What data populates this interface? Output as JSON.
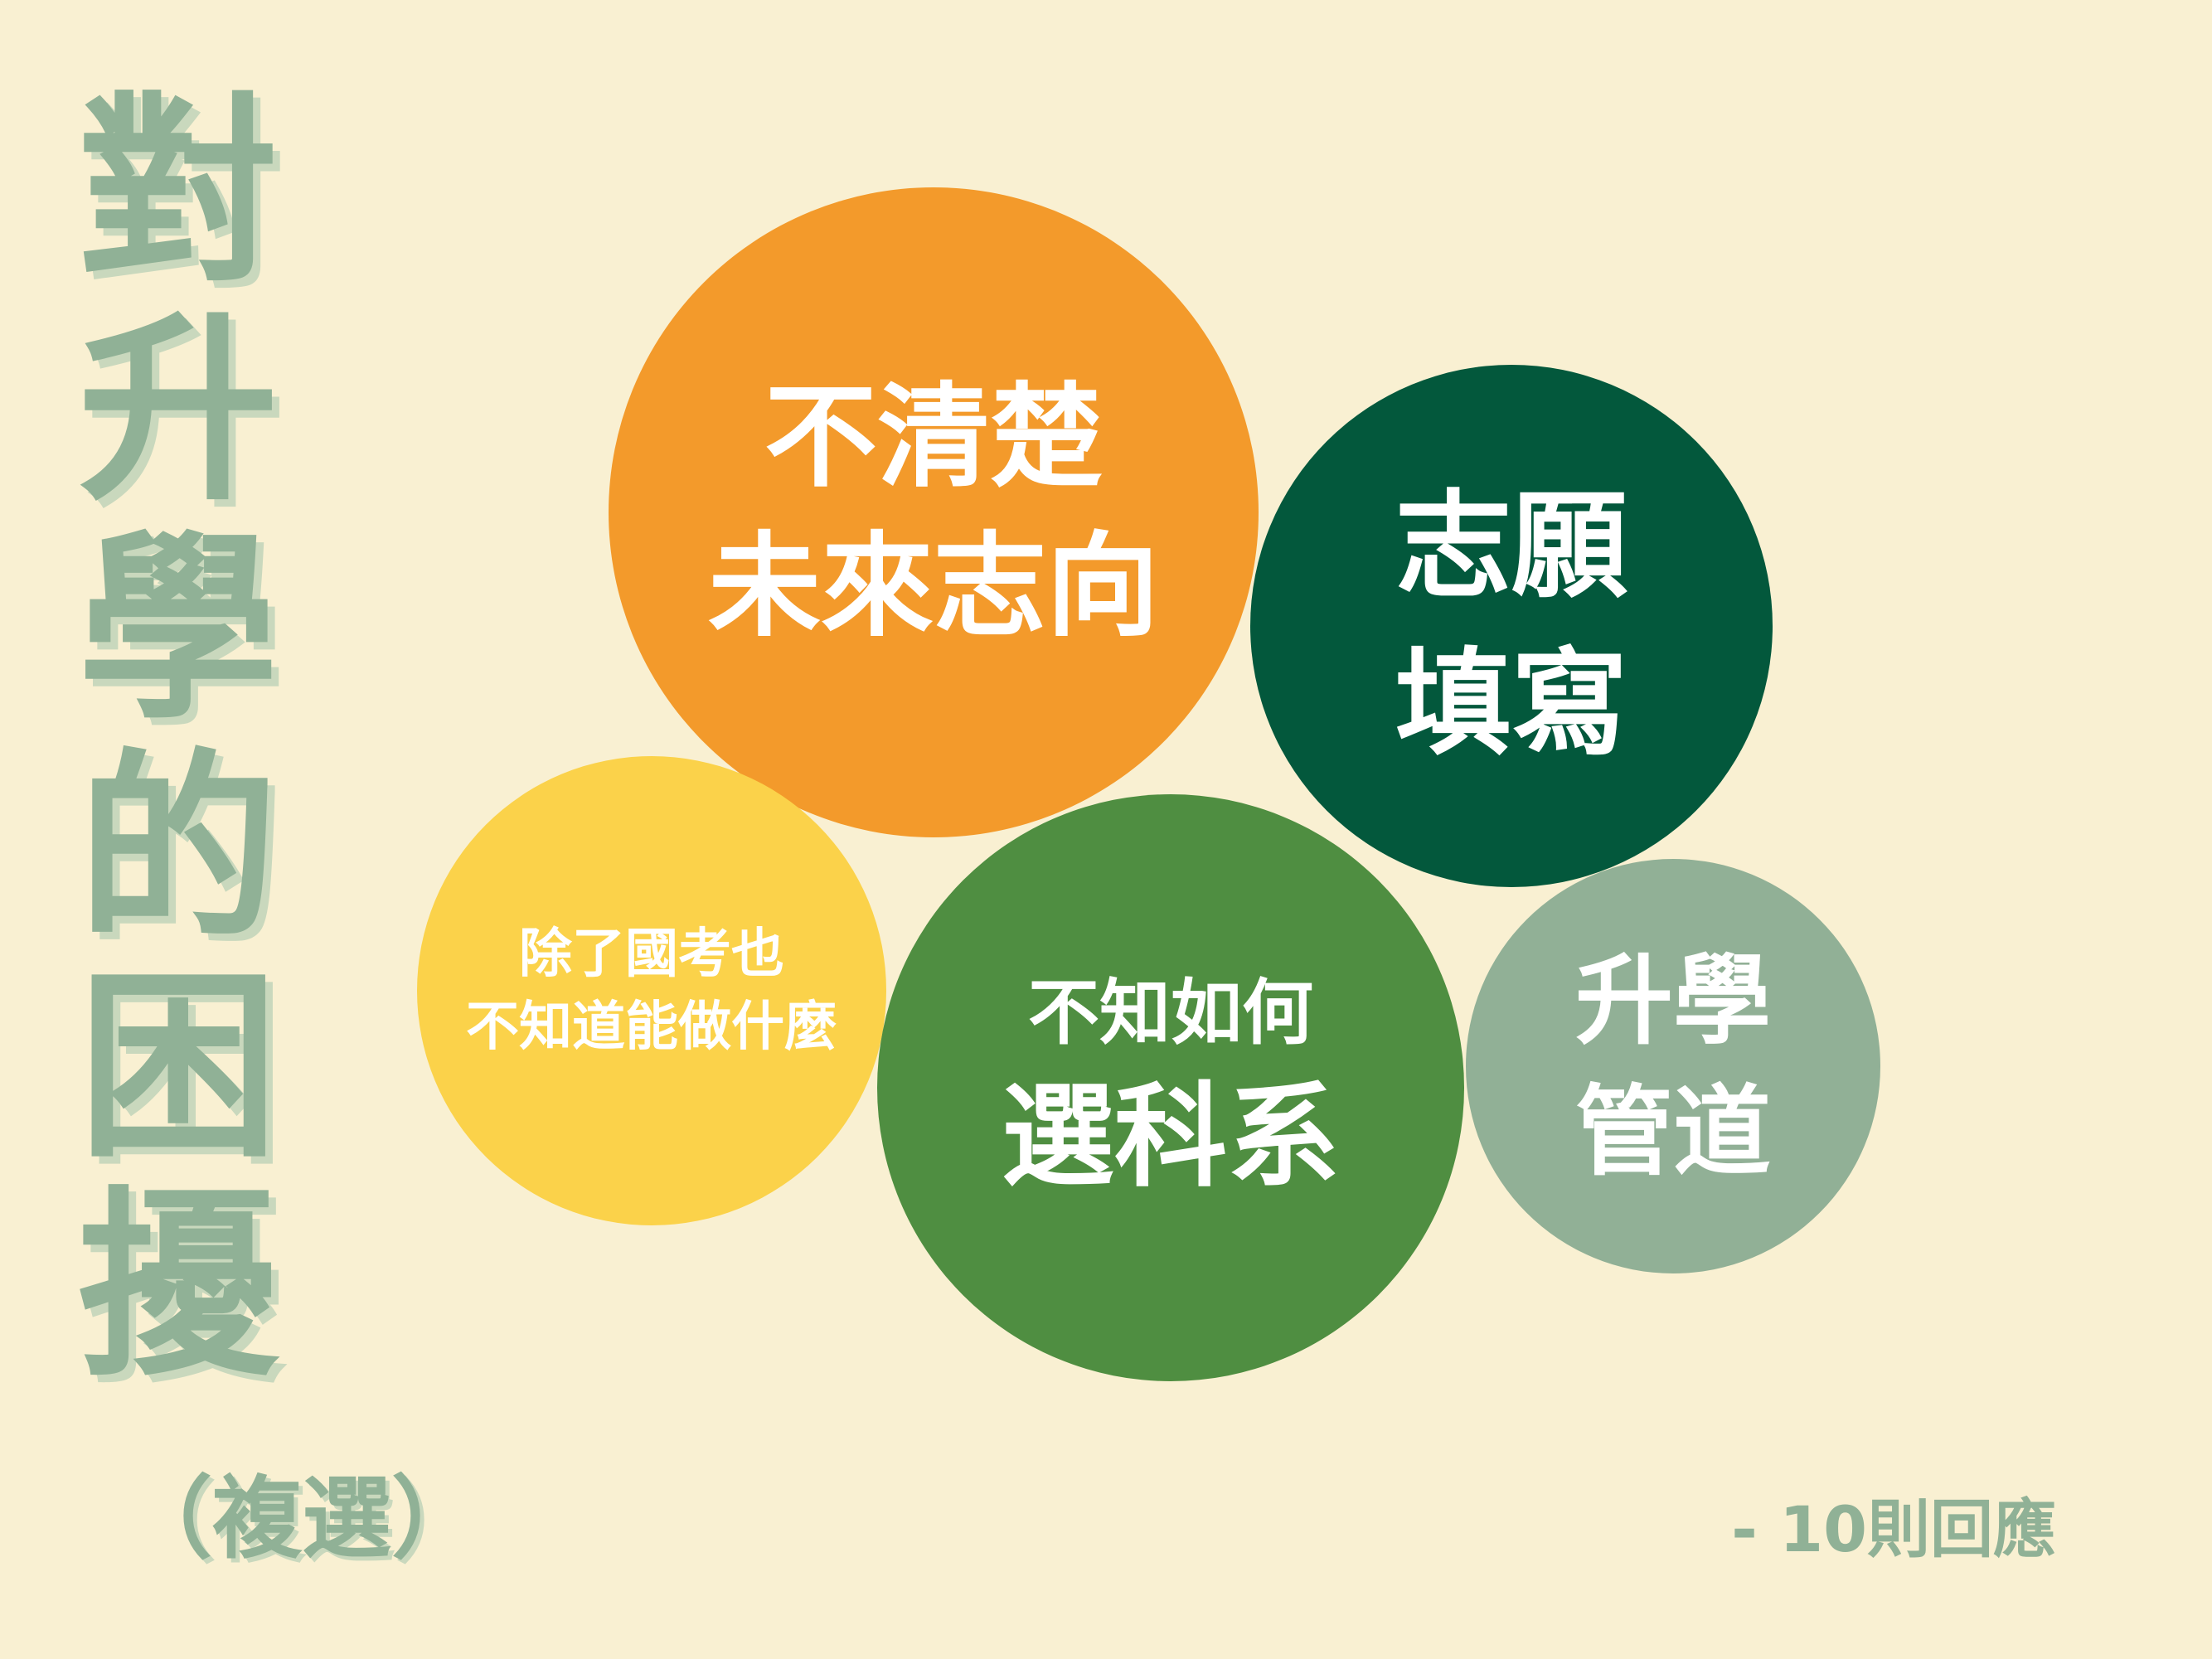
{
  "title": {
    "chars": [
      "對",
      "升",
      "學",
      "的",
      "困",
      "擾"
    ],
    "note": "（複選）"
  },
  "footnote": "- 10則回應",
  "bubbles": [
    {
      "lines": [
        "不清楚",
        "未來志向"
      ],
      "color": "#f39a2b"
    },
    {
      "lines": [
        "志願",
        "填寫"
      ],
      "color": "#03583c"
    },
    {
      "lines": [
        "除了國考也",
        "不知道能做什麼"
      ],
      "color": "#fbd24a"
    },
    {
      "lines": [
        "不知如何",
        "選科系"
      ],
      "color": "#4f8e41"
    },
    {
      "lines": [
        "升學",
        "管道"
      ],
      "color": "#91b096"
    }
  ]
}
